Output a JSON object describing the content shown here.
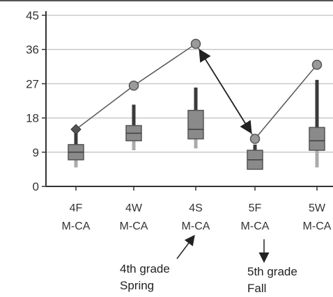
{
  "chart_data": {
    "type": "box",
    "title": "",
    "xlabel": "",
    "ylabel": "",
    "ylim": [
      0,
      45
    ],
    "yticks": [
      0,
      9,
      18,
      27,
      36,
      45
    ],
    "grid": true,
    "legend": "none",
    "categories": [
      {
        "line1": "4F",
        "line2": "M-CA"
      },
      {
        "line1": "4W",
        "line2": "M-CA"
      },
      {
        "line1": "4S",
        "line2": "M-CA"
      },
      {
        "line1": "5F",
        "line2": "M-CA"
      },
      {
        "line1": "5W",
        "line2": "M-CA"
      }
    ],
    "boxes": [
      {
        "min": 5,
        "q1": 7,
        "median": 9,
        "q3": 11,
        "max": 14
      },
      {
        "min": 9.5,
        "q1": 12,
        "median": 14,
        "q3": 16,
        "max": 21.5
      },
      {
        "min": 10,
        "q1": 12.5,
        "median": 15,
        "q3": 20,
        "max": 26
      },
      {
        "min": 4.5,
        "q1": 4.5,
        "median": 7,
        "q3": 9.5,
        "max": 11
      },
      {
        "min": 5,
        "q1": 9.5,
        "median": 12,
        "q3": 15.5,
        "max": 28
      }
    ],
    "series": [
      {
        "values": [
          15,
          26.5,
          37.5,
          12.5,
          32
        ]
      }
    ],
    "annotations": [
      {
        "line1": "4th grade",
        "line2": "Spring"
      },
      {
        "line1": "5th grade",
        "line2": "Fall"
      }
    ],
    "colors": {
      "grid": "#c8c8c8",
      "axis": "#333333",
      "box_fill": "#8a8a8a",
      "box_stroke": "#555555",
      "whisker": "#3a3a3a",
      "line": "#555555",
      "marker": "#9a9a9a"
    }
  }
}
